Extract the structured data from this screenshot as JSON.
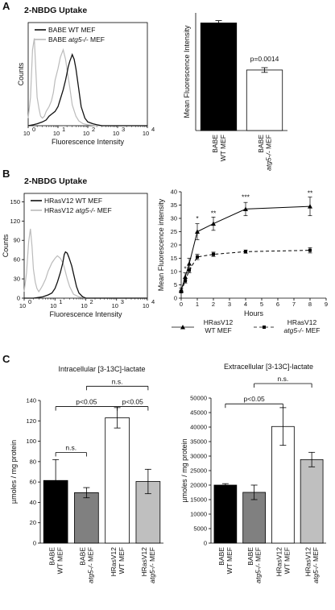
{
  "panels": [
    {
      "letter": "A",
      "subtitle": "2-NBDG Uptake"
    },
    {
      "letter": "B",
      "subtitle": "2-NBDG Uptake"
    },
    {
      "letter": "C"
    }
  ],
  "chart_data": [
    {
      "id": "A-hist",
      "type": "line",
      "title": "",
      "xlabel": "Fluorescence Intensity",
      "ylabel": "Counts",
      "xscale": "log",
      "xticks": [
        "10",
        "10",
        "10",
        "10",
        "10"
      ],
      "xtick_exps": [
        "0",
        "1",
        "2",
        "3",
        "4"
      ],
      "yticks": [],
      "legend_placement": "top-right",
      "series": [
        {
          "name": "BABE WT MEF",
          "color": "#111111",
          "x": [
            1,
            1.5,
            2,
            3,
            4,
            5,
            6,
            8,
            10,
            12,
            15,
            18,
            20,
            22,
            25,
            28,
            30,
            35,
            40,
            50,
            60,
            80,
            100,
            150,
            200,
            300,
            500,
            1000,
            10000
          ],
          "y": [
            0,
            1,
            2,
            4,
            6,
            10,
            12,
            15,
            20,
            28,
            38,
            48,
            55,
            62,
            68,
            72,
            75,
            70,
            60,
            38,
            20,
            8,
            4,
            2,
            1,
            0,
            0,
            0,
            0
          ]
        },
        {
          "name": "BABE atg5-/- MEF",
          "color": "#bbbbbb",
          "x": [
            1,
            1.2,
            1.4,
            1.6,
            1.8,
            2,
            2.3,
            2.6,
            3,
            3.5,
            4,
            5,
            6,
            7,
            8,
            10,
            12,
            15,
            18,
            20,
            25,
            30,
            40,
            50,
            70,
            100,
            200,
            10000
          ],
          "y": [
            8,
            30,
            80,
            92,
            60,
            30,
            18,
            10,
            8,
            10,
            15,
            20,
            26,
            35,
            48,
            60,
            72,
            80,
            70,
            60,
            40,
            22,
            10,
            5,
            2,
            1,
            0,
            0
          ]
        }
      ]
    },
    {
      "id": "A-bar",
      "type": "bar",
      "title": "",
      "xlabel": "",
      "ylabel": "Mean Fluorescence Intensity",
      "ylim": [
        0,
        35
      ],
      "yticks": [],
      "categories": [
        "BABE WT MEF",
        "BABE atg5-/- MEF"
      ],
      "category_lines": [
        [
          "BABE",
          "WT MEF"
        ],
        [
          "BABE",
          "atg5-/- MEF"
        ]
      ],
      "values": [
        32,
        18
      ],
      "errors": [
        0.7,
        0.7
      ],
      "colors": [
        "#000000",
        "#ffffff"
      ],
      "annotations": [
        {
          "text": "p=0.0014",
          "over": 1
        }
      ]
    },
    {
      "id": "B-hist",
      "type": "line",
      "title": "",
      "xlabel": "Fluorescence Intensity",
      "ylabel": "Counts",
      "xlim": [
        0,
        10000
      ],
      "xscale": "log",
      "xticks": [
        "10",
        "10",
        "10",
        "10",
        "10"
      ],
      "xtick_exps": [
        "0",
        "1",
        "2",
        "3",
        "4"
      ],
      "yticks": [
        0,
        30,
        60,
        90,
        120,
        150
      ],
      "ylim": [
        0,
        150
      ],
      "legend_placement": "top-right",
      "series": [
        {
          "name": "HRasV12 WT MEF",
          "color": "#111111",
          "x": [
            1,
            2,
            4,
            6,
            8,
            10,
            12,
            15,
            18,
            20,
            22,
            25,
            28,
            30,
            35,
            40,
            50,
            60,
            80,
            100,
            200,
            10000
          ],
          "y": [
            0,
            0,
            2,
            5,
            8,
            15,
            25,
            40,
            55,
            68,
            72,
            70,
            64,
            60,
            50,
            38,
            18,
            8,
            2,
            0,
            0,
            0
          ]
        },
        {
          "name": "HRasV12 atg5-/- MEF",
          "color": "#bbbbbb",
          "x": [
            1,
            1.2,
            1.4,
            1.6,
            1.8,
            2,
            2.3,
            2.6,
            3,
            3.5,
            4,
            5,
            6,
            8,
            10,
            12,
            15,
            18,
            20,
            25,
            30,
            40,
            60,
            100,
            10000
          ],
          "y": [
            10,
            40,
            88,
            108,
            80,
            45,
            25,
            15,
            10,
            15,
            20,
            30,
            42,
            55,
            62,
            66,
            62,
            55,
            48,
            30,
            18,
            6,
            2,
            0,
            0
          ]
        }
      ]
    },
    {
      "id": "B-time",
      "type": "line",
      "title": "",
      "xlabel": "Hours",
      "ylabel": "Mean Fluorescence intensity",
      "xlim": [
        0,
        9
      ],
      "xticks": [
        0,
        1,
        2,
        3,
        4,
        5,
        6,
        7,
        8,
        9
      ],
      "ylim": [
        0,
        40
      ],
      "yticks": [
        0,
        5,
        10,
        15,
        20,
        25,
        30,
        35,
        40
      ],
      "series": [
        {
          "name": "HRasV12 WT MEF",
          "color": "#000000",
          "style": "solid",
          "marker": "triangle",
          "x": [
            0,
            0.25,
            0.5,
            1,
            2,
            4,
            8
          ],
          "y": [
            3,
            8,
            13,
            25,
            28,
            33.5,
            34.5
          ],
          "err": [
            0.8,
            1.5,
            2,
            3,
            2.5,
            2.5,
            3.5
          ]
        },
        {
          "name": "HRasV12 atg5-/- MEF",
          "color": "#000000",
          "style": "dashed",
          "marker": "square",
          "x": [
            0,
            0.25,
            0.5,
            1,
            2,
            4,
            8
          ],
          "y": [
            2.5,
            6.5,
            10.5,
            15.5,
            16.5,
            17.5,
            18
          ],
          "err": [
            0.5,
            0.8,
            1,
            1,
            0.8,
            0.6,
            1
          ]
        }
      ],
      "legend_lines": [
        [
          "HRasV12",
          "WT MEF"
        ],
        [
          "HRasV12",
          "atg5-/- MEF"
        ]
      ],
      "annotations": [
        {
          "text": "*",
          "x": 0.25,
          "y": 11
        },
        {
          "text": "*",
          "x": 1,
          "y": 30
        },
        {
          "text": "**",
          "x": 2,
          "y": 32
        },
        {
          "text": "***",
          "x": 4,
          "y": 38
        },
        {
          "text": "**",
          "x": 8,
          "y": 39.5
        }
      ]
    },
    {
      "id": "C-intra",
      "type": "bar",
      "title": "Intracellular [3-13C]-lactate",
      "xlabel": "",
      "ylabel": "µmoles / mg protein",
      "ylim": [
        0,
        140
      ],
      "yticks": [
        0,
        20,
        40,
        60,
        80,
        100,
        120,
        140
      ],
      "categories": [
        "BABE WT MEF",
        "BABE atg5-/- MEF",
        "HRasV12 WT MEF",
        "HRasV12 atg5-/- MEF"
      ],
      "category_lines": [
        [
          "BABE",
          "WT MEF"
        ],
        [
          "BABE",
          "atg5-/- MEF"
        ],
        [
          "HRasV12",
          "WT MEF"
        ],
        [
          "HRasV12",
          "atg5-/- MEF"
        ]
      ],
      "values": [
        61.5,
        49.5,
        123,
        60.5
      ],
      "errors": [
        20.5,
        5,
        10,
        12
      ],
      "colors": [
        "#000000",
        "#808080",
        "#ffffff",
        "#bfbfbf"
      ],
      "brackets": [
        {
          "from": 0,
          "to": 1,
          "text": "n.s.",
          "y": 89
        },
        {
          "from": 0,
          "to": 2,
          "text": "p<0.05",
          "y": 134
        },
        {
          "from": 2,
          "to": 3,
          "text": "p<0.05",
          "y": 134
        },
        {
          "from": 1,
          "to": 3,
          "text": "n.s.",
          "y": 154
        }
      ]
    },
    {
      "id": "C-extra",
      "type": "bar",
      "title": "Extracellular [3-13C]-lactate",
      "xlabel": "",
      "ylabel": "µmoles / mg protein",
      "ylim": [
        0,
        50000
      ],
      "yticks": [
        0,
        5000,
        10000,
        15000,
        20000,
        25000,
        30000,
        35000,
        40000,
        45000,
        50000
      ],
      "categories": [
        "BABE WT MEF",
        "BABE atg5-/- MEF",
        "HRasV12 WT MEF",
        "HRasV12 atg5-/- MEF"
      ],
      "category_lines": [
        [
          "BABE",
          "WT MEF"
        ],
        [
          "BABE",
          "atg5-/- MEF"
        ],
        [
          "HRasV12",
          "WT MEF"
        ],
        [
          "HRasV12",
          "atg5-/- MEF"
        ]
      ],
      "values": [
        20000,
        17500,
        40200,
        28800
      ],
      "errors": [
        500,
        2500,
        6500,
        2500
      ],
      "colors": [
        "#000000",
        "#808080",
        "#ffffff",
        "#bfbfbf"
      ],
      "brackets": [
        {
          "from": 0,
          "to": 2,
          "text": "p<0.05",
          "y": 48000
        },
        {
          "from": 1,
          "to": 3,
          "text": "n.s.",
          "y": 55000
        }
      ]
    }
  ]
}
